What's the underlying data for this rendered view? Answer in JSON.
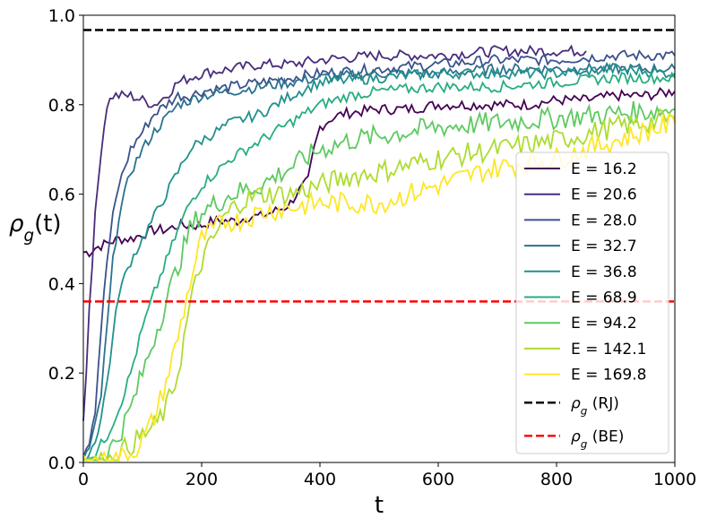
{
  "chart_data": {
    "type": "line",
    "title": "",
    "xlabel": "t",
    "ylabel": "ρ_g(t)",
    "xlim": [
      0,
      1000
    ],
    "ylim": [
      0.0,
      1.0
    ],
    "xticks": [
      0,
      200,
      400,
      600,
      800,
      1000
    ],
    "yticks": [
      0.0,
      0.2,
      0.4,
      0.6,
      0.8,
      1.0
    ],
    "xtick_labels": [
      "0",
      "200",
      "400",
      "600",
      "800",
      "1000"
    ],
    "ytick_labels": [
      "0.0",
      "0.2",
      "0.4",
      "0.6",
      "0.8",
      "1.0"
    ],
    "grid": false,
    "legend_position": "center-right",
    "series": [
      {
        "name": "E = 16.2",
        "color": "#440154",
        "x": [
          0,
          10,
          20,
          40,
          60,
          80,
          100,
          120,
          140,
          160,
          180,
          200,
          220,
          240,
          260,
          280,
          300,
          320,
          340,
          350,
          360,
          380,
          390,
          400,
          420,
          440,
          500,
          550,
          600,
          700,
          750,
          800,
          850,
          900,
          950,
          1000
        ],
        "y": [
          0.47,
          0.47,
          0.48,
          0.49,
          0.5,
          0.5,
          0.51,
          0.52,
          0.52,
          0.53,
          0.53,
          0.53,
          0.54,
          0.54,
          0.54,
          0.55,
          0.55,
          0.56,
          0.57,
          0.58,
          0.6,
          0.63,
          0.7,
          0.75,
          0.77,
          0.78,
          0.79,
          0.79,
          0.8,
          0.8,
          0.8,
          0.81,
          0.81,
          0.82,
          0.82,
          0.83
        ]
      },
      {
        "name": "E = 20.6",
        "color": "#472d7b",
        "x": [
          0,
          5,
          10,
          20,
          30,
          40,
          50,
          60,
          80,
          100,
          120,
          140,
          160,
          180,
          200,
          250,
          300,
          350,
          400,
          500,
          600,
          700,
          800,
          850
        ],
        "y": [
          0.1,
          0.2,
          0.35,
          0.55,
          0.7,
          0.8,
          0.82,
          0.82,
          0.82,
          0.81,
          0.8,
          0.82,
          0.85,
          0.86,
          0.87,
          0.88,
          0.89,
          0.89,
          0.9,
          0.91,
          0.91,
          0.92,
          0.92,
          0.92
        ]
      },
      {
        "name": "E = 28.0",
        "color": "#3b528b",
        "x": [
          0,
          10,
          20,
          30,
          40,
          50,
          60,
          80,
          100,
          120,
          140,
          160,
          180,
          200,
          250,
          300,
          350,
          400,
          500,
          600,
          700,
          800,
          900,
          1000
        ],
        "y": [
          0.02,
          0.05,
          0.12,
          0.3,
          0.45,
          0.55,
          0.62,
          0.7,
          0.74,
          0.78,
          0.8,
          0.82,
          0.82,
          0.83,
          0.84,
          0.85,
          0.86,
          0.87,
          0.88,
          0.89,
          0.9,
          0.9,
          0.91,
          0.91
        ]
      },
      {
        "name": "E = 32.7",
        "color": "#2c728e",
        "x": [
          0,
          10,
          20,
          30,
          40,
          50,
          60,
          80,
          100,
          120,
          140,
          160,
          180,
          200,
          250,
          300,
          350,
          400,
          500,
          600,
          700,
          800,
          900,
          1000
        ],
        "y": [
          0.01,
          0.03,
          0.08,
          0.15,
          0.3,
          0.45,
          0.55,
          0.65,
          0.7,
          0.74,
          0.77,
          0.8,
          0.81,
          0.82,
          0.83,
          0.84,
          0.85,
          0.86,
          0.87,
          0.87,
          0.88,
          0.88,
          0.88,
          0.88
        ]
      },
      {
        "name": "E = 36.8",
        "color": "#21918c",
        "x": [
          0,
          10,
          20,
          30,
          40,
          50,
          60,
          80,
          100,
          120,
          140,
          160,
          180,
          200,
          250,
          300,
          350,
          400,
          500,
          600,
          700,
          800,
          900,
          1000
        ],
        "y": [
          0.0,
          0.02,
          0.05,
          0.1,
          0.18,
          0.28,
          0.38,
          0.45,
          0.5,
          0.55,
          0.6,
          0.65,
          0.7,
          0.72,
          0.76,
          0.78,
          0.82,
          0.85,
          0.86,
          0.87,
          0.87,
          0.87,
          0.88,
          0.87
        ]
      },
      {
        "name": "E = 68.9",
        "color": "#28ae80",
        "x": [
          0,
          20,
          40,
          60,
          80,
          100,
          120,
          140,
          160,
          180,
          200,
          250,
          300,
          350,
          400,
          450,
          500,
          600,
          700,
          800,
          900,
          1000
        ],
        "y": [
          0.0,
          0.02,
          0.06,
          0.12,
          0.2,
          0.3,
          0.38,
          0.45,
          0.52,
          0.58,
          0.62,
          0.68,
          0.72,
          0.76,
          0.8,
          0.82,
          0.83,
          0.84,
          0.84,
          0.85,
          0.86,
          0.86
        ]
      },
      {
        "name": "E = 94.2",
        "color": "#5ec962",
        "x": [
          0,
          20,
          40,
          60,
          80,
          100,
          120,
          140,
          160,
          180,
          200,
          250,
          300,
          350,
          400,
          450,
          500,
          600,
          700,
          800,
          900,
          1000
        ],
        "y": [
          0.0,
          0.0,
          0.02,
          0.06,
          0.12,
          0.2,
          0.28,
          0.36,
          0.44,
          0.52,
          0.56,
          0.6,
          0.62,
          0.66,
          0.7,
          0.72,
          0.73,
          0.75,
          0.76,
          0.77,
          0.78,
          0.79
        ]
      },
      {
        "name": "E = 142.1",
        "color": "#addc30",
        "x": [
          0,
          20,
          40,
          60,
          80,
          100,
          120,
          140,
          160,
          180,
          200,
          220,
          240,
          260,
          300,
          350,
          400,
          450,
          500,
          600,
          700,
          800,
          900,
          1000
        ],
        "y": [
          0.0,
          0.0,
          0.0,
          0.02,
          0.04,
          0.06,
          0.08,
          0.12,
          0.2,
          0.35,
          0.45,
          0.5,
          0.55,
          0.58,
          0.6,
          0.6,
          0.62,
          0.64,
          0.65,
          0.68,
          0.7,
          0.72,
          0.75,
          0.77
        ]
      },
      {
        "name": "E = 169.8",
        "color": "#fde725",
        "x": [
          0,
          20,
          40,
          60,
          80,
          100,
          120,
          140,
          160,
          180,
          200,
          220,
          240,
          260,
          280,
          300,
          350,
          400,
          450,
          500,
          550,
          600,
          700,
          800,
          900,
          1000
        ],
        "y": [
          0.0,
          0.0,
          0.0,
          0.01,
          0.02,
          0.05,
          0.1,
          0.18,
          0.28,
          0.4,
          0.5,
          0.52,
          0.54,
          0.54,
          0.55,
          0.56,
          0.57,
          0.58,
          0.58,
          0.58,
          0.6,
          0.62,
          0.66,
          0.68,
          0.72,
          0.76
        ]
      }
    ],
    "reference_lines": [
      {
        "name": "ρ_g (RJ)",
        "y": 0.967,
        "color": "#000000",
        "style": "dashed"
      },
      {
        "name": "ρ_g (BE)",
        "y": 0.36,
        "color": "#ff0000",
        "style": "dashed"
      }
    ]
  }
}
